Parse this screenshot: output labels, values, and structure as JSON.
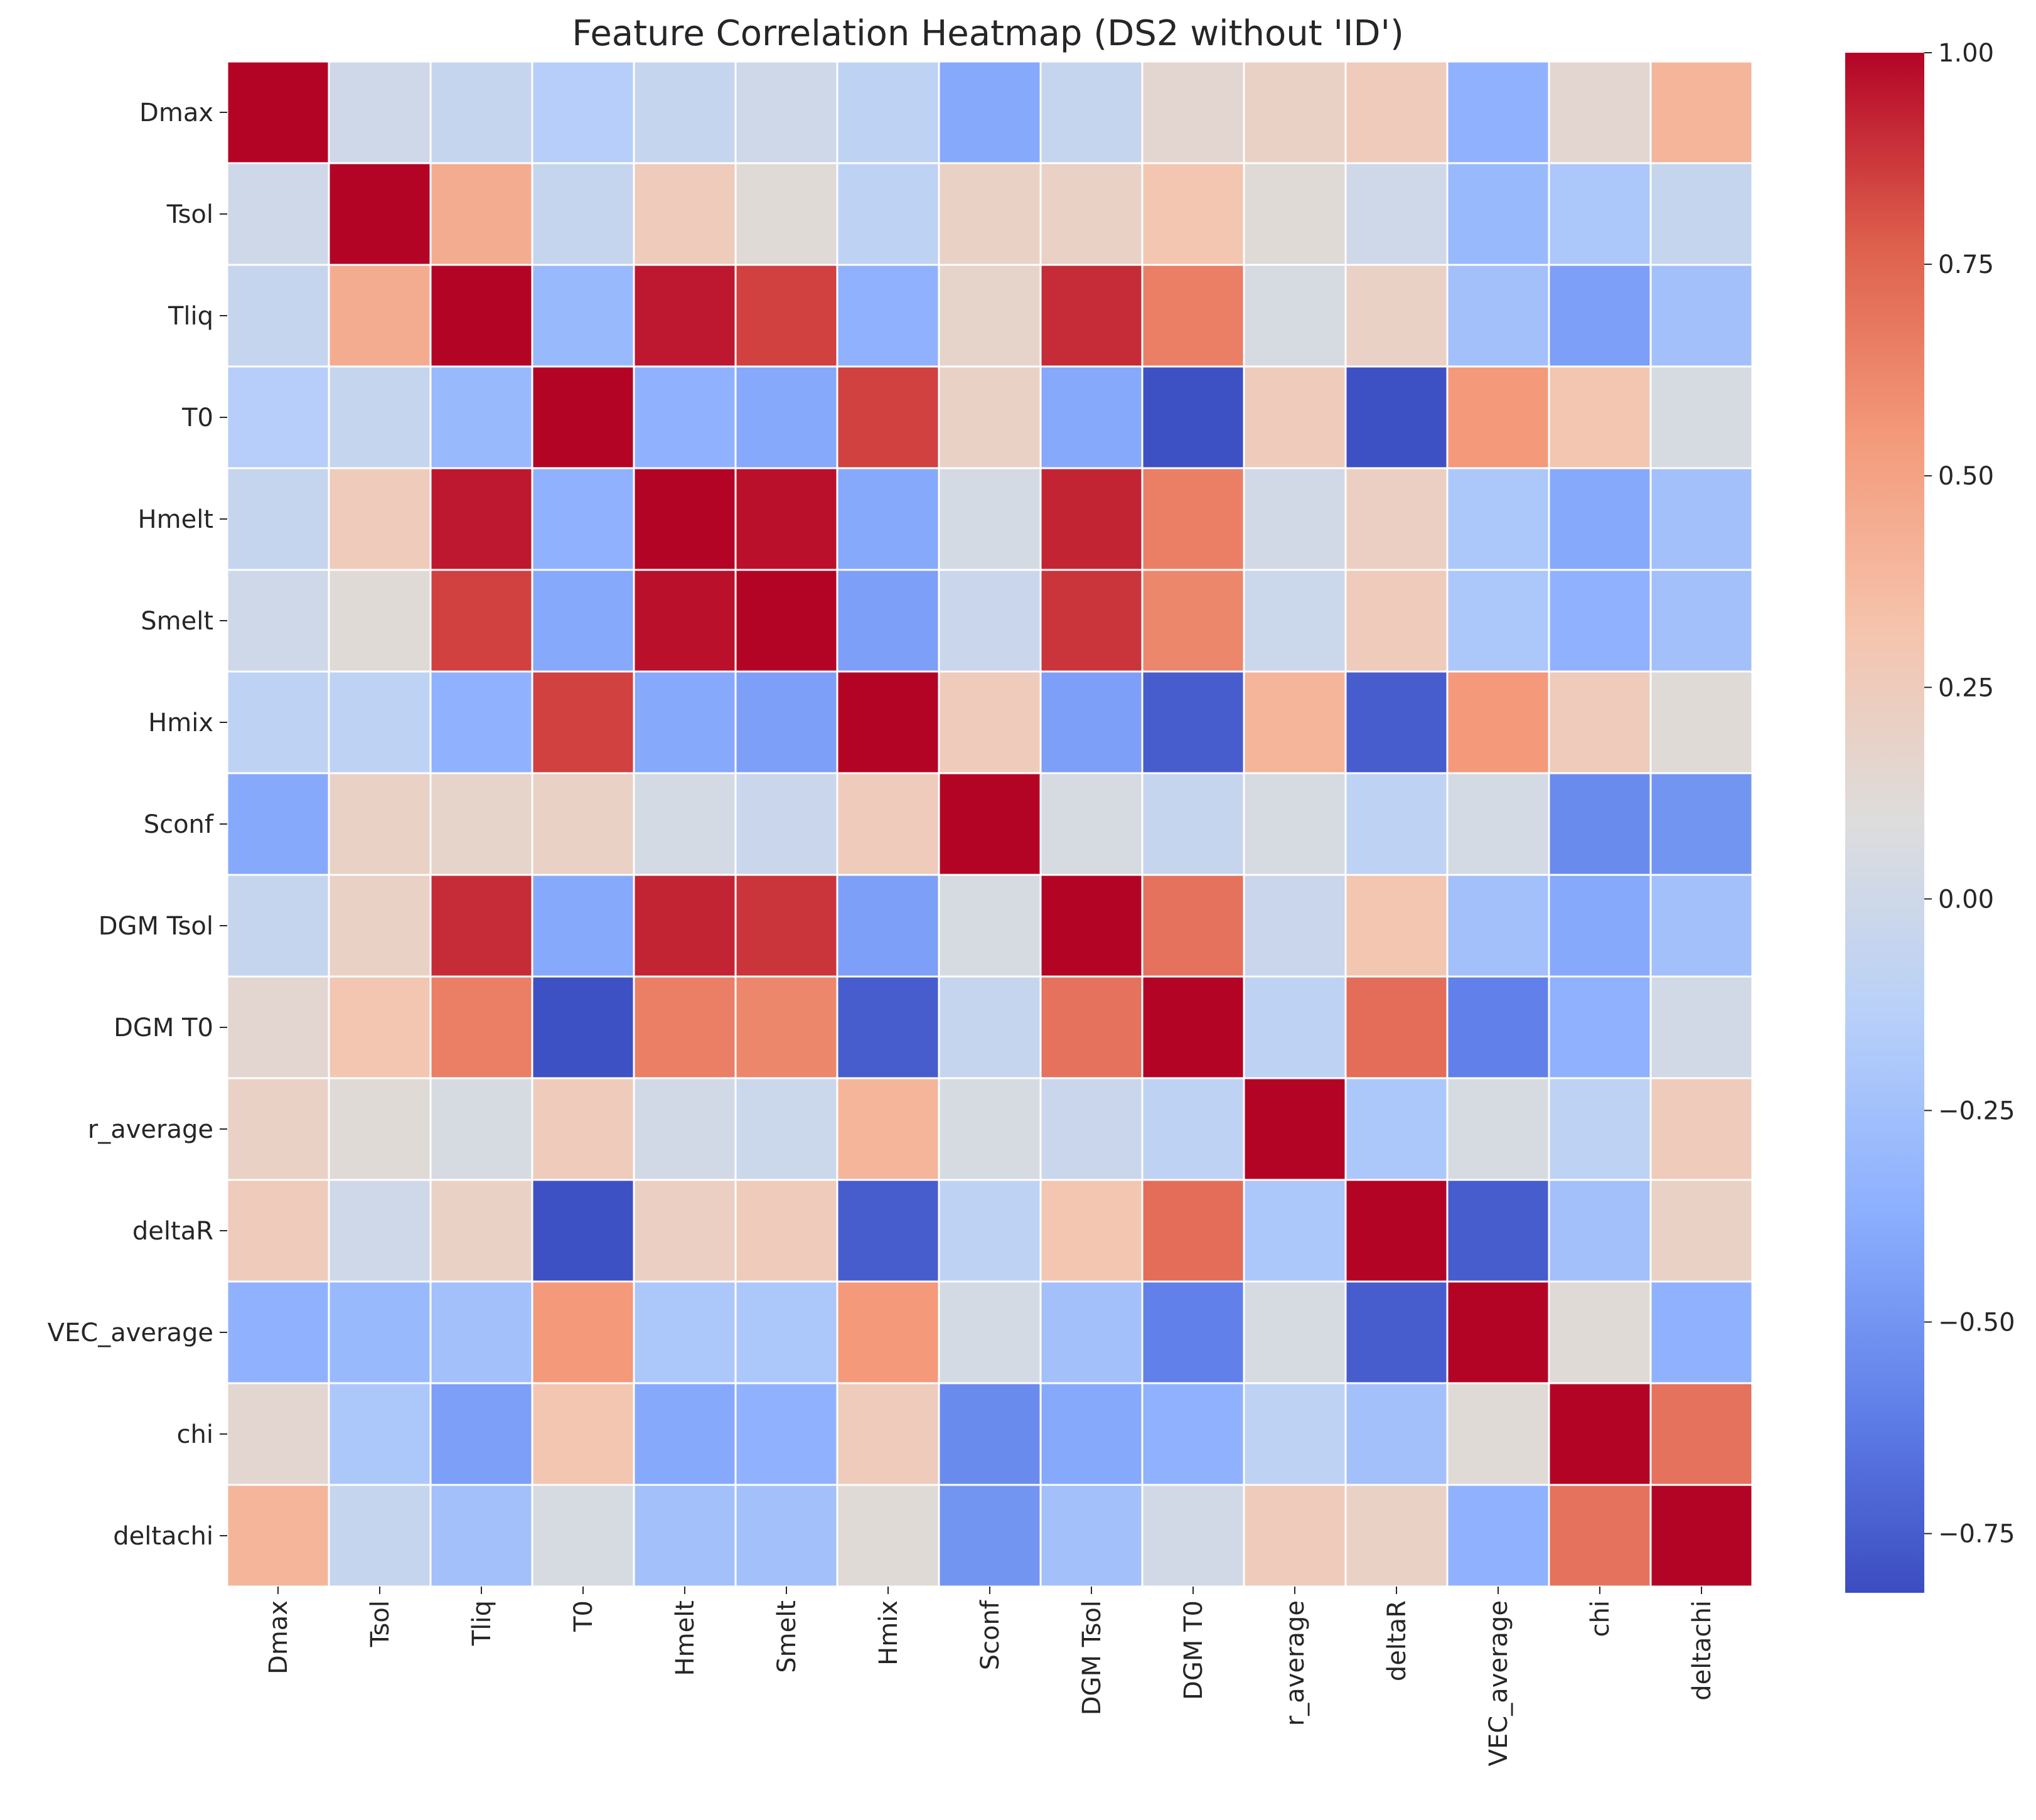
{
  "chart_data": {
    "type": "heatmap",
    "title": "Feature Correlation Heatmap (DS2 without 'ID')",
    "labels": [
      "Dmax",
      "Tsol",
      "Tliq",
      "T0",
      "Hmelt",
      "Smelt",
      "Hmix",
      "Sconf",
      "DGM Tsol",
      "DGM T0",
      "r_average",
      "deltaR",
      "VEC_average",
      "chi",
      "deltachi"
    ],
    "matrix": [
      [
        1.0,
        0.0,
        -0.05,
        -0.15,
        -0.05,
        0.0,
        -0.1,
        -0.4,
        -0.05,
        0.15,
        0.2,
        0.25,
        -0.35,
        0.15,
        0.4
      ],
      [
        0.0,
        1.0,
        0.45,
        -0.05,
        0.25,
        0.12,
        -0.1,
        0.2,
        0.2,
        0.3,
        0.12,
        0.0,
        -0.3,
        -0.2,
        -0.05
      ],
      [
        -0.05,
        0.45,
        1.0,
        -0.3,
        0.95,
        0.85,
        -0.35,
        0.18,
        0.9,
        0.65,
        0.05,
        0.2,
        -0.25,
        -0.45,
        -0.25
      ],
      [
        -0.15,
        -0.05,
        -0.3,
        1.0,
        -0.35,
        -0.4,
        0.85,
        0.2,
        -0.4,
        -0.8,
        0.25,
        -0.8,
        0.55,
        0.3,
        0.05
      ],
      [
        -0.05,
        0.25,
        0.95,
        -0.35,
        1.0,
        0.97,
        -0.4,
        0.03,
        0.92,
        0.65,
        0.02,
        0.22,
        -0.2,
        -0.4,
        -0.25
      ],
      [
        0.0,
        0.12,
        0.85,
        -0.4,
        0.97,
        1.0,
        -0.45,
        -0.03,
        0.88,
        0.62,
        -0.02,
        0.25,
        -0.2,
        -0.35,
        -0.25
      ],
      [
        -0.1,
        -0.1,
        -0.35,
        0.85,
        -0.4,
        -0.45,
        1.0,
        0.25,
        -0.45,
        -0.75,
        0.4,
        -0.75,
        0.55,
        0.25,
        0.12
      ],
      [
        -0.4,
        0.2,
        0.18,
        0.2,
        0.03,
        -0.03,
        0.25,
        1.0,
        0.05,
        -0.05,
        0.05,
        -0.1,
        0.03,
        -0.55,
        -0.5
      ],
      [
        -0.05,
        0.2,
        0.9,
        -0.4,
        0.92,
        0.88,
        -0.45,
        0.05,
        1.0,
        0.7,
        -0.03,
        0.3,
        -0.25,
        -0.4,
        -0.25
      ],
      [
        0.15,
        0.3,
        0.65,
        -0.8,
        0.65,
        0.62,
        -0.75,
        -0.05,
        0.7,
        1.0,
        -0.1,
        0.72,
        -0.6,
        -0.35,
        0.02
      ],
      [
        0.2,
        0.12,
        0.05,
        0.25,
        0.02,
        -0.02,
        0.4,
        0.05,
        -0.03,
        -0.1,
        1.0,
        -0.2,
        0.05,
        -0.1,
        0.25
      ],
      [
        0.25,
        0.0,
        0.2,
        -0.8,
        0.22,
        0.25,
        -0.75,
        -0.1,
        0.3,
        0.72,
        -0.2,
        1.0,
        -0.75,
        -0.25,
        0.2
      ],
      [
        -0.35,
        -0.3,
        -0.25,
        0.55,
        -0.2,
        -0.2,
        0.55,
        0.03,
        -0.25,
        -0.6,
        0.05,
        -0.75,
        1.0,
        0.12,
        -0.35
      ],
      [
        0.15,
        -0.2,
        -0.45,
        0.3,
        -0.4,
        -0.35,
        0.25,
        -0.55,
        -0.4,
        -0.35,
        -0.1,
        -0.25,
        0.12,
        1.0,
        0.7
      ],
      [
        0.4,
        -0.05,
        -0.25,
        0.05,
        -0.25,
        -0.25,
        0.12,
        -0.5,
        -0.25,
        0.02,
        0.25,
        0.2,
        -0.35,
        0.7,
        1.0
      ]
    ],
    "colorbar": {
      "vmin": -0.82,
      "vmax": 1.0,
      "ticks": [
        1.0,
        0.75,
        0.5,
        0.25,
        0.0,
        -0.25,
        -0.5,
        -0.75
      ],
      "tick_labels": [
        "1.00",
        "0.75",
        "0.50",
        "0.25",
        "0.00",
        "−0.25",
        "−0.50",
        "−0.75"
      ],
      "colormap": "coolwarm"
    },
    "xlabel": "",
    "ylabel": "",
    "grid_line_color": "#ffffff"
  }
}
